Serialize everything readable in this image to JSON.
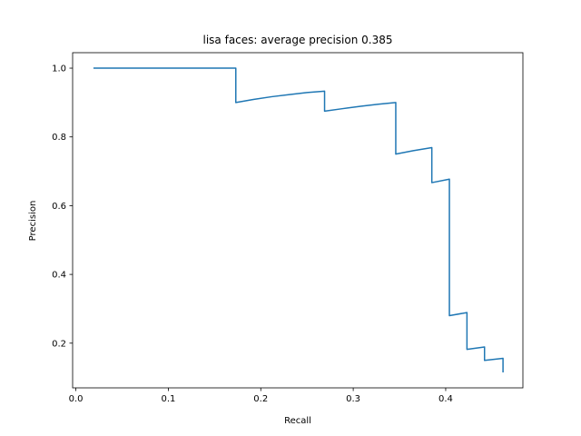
{
  "chart_data": {
    "type": "line",
    "title": "lisa faces: average precision 0.385",
    "xlabel": "Recall",
    "ylabel": "Precision",
    "xlim": [
      -0.0035,
      0.4835
    ],
    "ylim": [
      0.07,
      1.045
    ],
    "xticks": [
      0.0,
      0.1,
      0.2,
      0.3,
      0.4
    ],
    "xtick_labels": [
      "0.0",
      "0.1",
      "0.2",
      "0.3",
      "0.4"
    ],
    "yticks": [
      0.2,
      0.4,
      0.6,
      0.8,
      1.0
    ],
    "ytick_labels": [
      "0.2",
      "0.4",
      "0.6",
      "0.8",
      "1.0"
    ],
    "grid": false,
    "legend": null,
    "series": [
      {
        "color": "#1f77b4",
        "x": [
          0.019,
          0.173,
          0.173,
          0.192,
          0.212,
          0.231,
          0.25,
          0.269,
          0.269,
          0.288,
          0.308,
          0.327,
          0.346,
          0.346,
          0.365,
          0.385,
          0.385,
          0.404,
          0.404,
          0.423,
          0.423,
          0.442,
          0.442,
          0.462,
          0.462
        ],
        "y": [
          1.0,
          1.0,
          0.9,
          0.909,
          0.917,
          0.923,
          0.929,
          0.933,
          0.875,
          0.882,
          0.889,
          0.895,
          0.9,
          0.75,
          0.76,
          0.769,
          0.667,
          0.677,
          0.28,
          0.289,
          0.182,
          0.189,
          0.15,
          0.156,
          0.115
        ]
      }
    ]
  }
}
